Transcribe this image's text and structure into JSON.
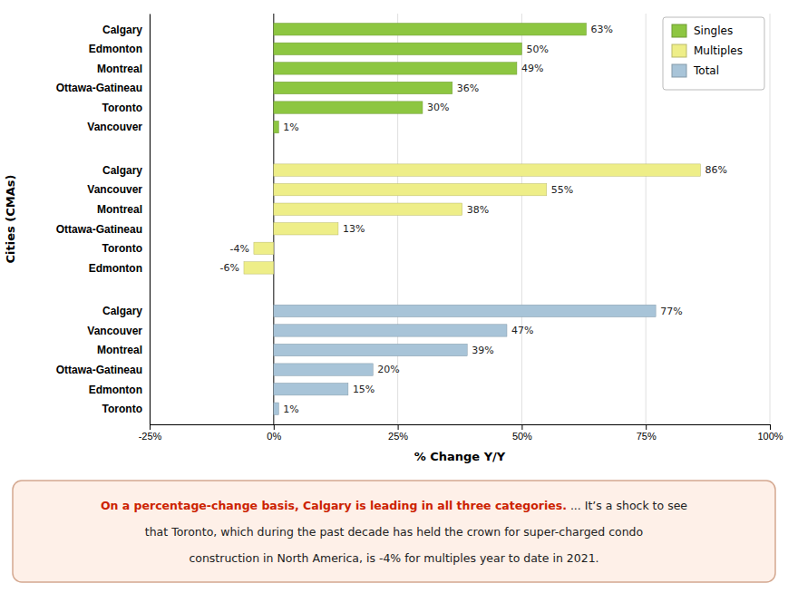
{
  "chart_data": {
    "type": "bar",
    "orientation": "horizontal",
    "xlabel": "% Change Y/Y",
    "ylabel": "Cities (CMAs)",
    "categories": [
      "Calgary",
      "Edmonton",
      "Montreal",
      "Ottawa-Gatineau",
      "Toronto",
      "Vancouver",
      "Calgary",
      "Vancouver",
      "Montreal",
      "Ottawa-Gatineau",
      "Toronto",
      "Edmonton",
      "Calgary",
      "Vancouver",
      "Montreal",
      "Ottawa-Gatineau",
      "Edmonton",
      "Toronto"
    ],
    "series": [
      {
        "name": "Singles",
        "color": "#8DC641",
        "values": [
          63,
          50,
          49,
          36,
          30,
          1,
          null,
          null,
          null,
          null,
          null,
          null,
          null,
          null,
          null,
          null,
          null,
          null
        ],
        "value_labels": [
          "63%",
          "50%",
          "49%",
          "36%",
          "30%",
          "1%",
          null,
          null,
          null,
          null,
          null,
          null,
          null,
          null,
          null,
          null,
          null,
          null
        ]
      },
      {
        "name": "Multiples",
        "color": "#EEEE88",
        "values": [
          null,
          null,
          null,
          null,
          null,
          null,
          86,
          55,
          38,
          13,
          -4,
          -6,
          null,
          null,
          null,
          null,
          null,
          null
        ],
        "value_labels": [
          null,
          null,
          null,
          null,
          null,
          null,
          "86%",
          "55%",
          "38%",
          "13%",
          "-4%",
          "-6%",
          null,
          null,
          null,
          null,
          null,
          null
        ]
      },
      {
        "name": "Total",
        "color": "#A8C4D8",
        "values": [
          null,
          null,
          null,
          null,
          null,
          null,
          null,
          null,
          null,
          null,
          null,
          null,
          77,
          47,
          39,
          20,
          15,
          1
        ],
        "value_labels": [
          null,
          null,
          null,
          null,
          null,
          null,
          null,
          null,
          null,
          null,
          null,
          null,
          "77%",
          "47%",
          "39%",
          "20%",
          "15%",
          "1%"
        ]
      }
    ],
    "xlim": [
      -25,
      100
    ],
    "xticks": [
      {
        "value": -25,
        "label": "-25%"
      },
      {
        "value": 0,
        "label": "0%"
      },
      {
        "value": 25,
        "label": "25%"
      },
      {
        "value": 50,
        "label": "50%"
      },
      {
        "value": 75,
        "label": "75%"
      },
      {
        "value": 100,
        "label": "100%"
      }
    ],
    "grid": true,
    "legend": "upper right",
    "data_labels": true,
    "annotations": [
      {
        "text": "On a percentage-change basis, Calgary is leading in all three categories.",
        "color": "#CC2200"
      },
      {
        "text": " ... It’s a shock to see",
        "color": "#222222"
      },
      {
        "text": "that Toronto, which during the past decade has held the crown for super-charged condo",
        "color": "#222222"
      },
      {
        "text": "construction in North America, is -4% for multiples year to date in 2021.",
        "color": "#222222"
      }
    ]
  }
}
